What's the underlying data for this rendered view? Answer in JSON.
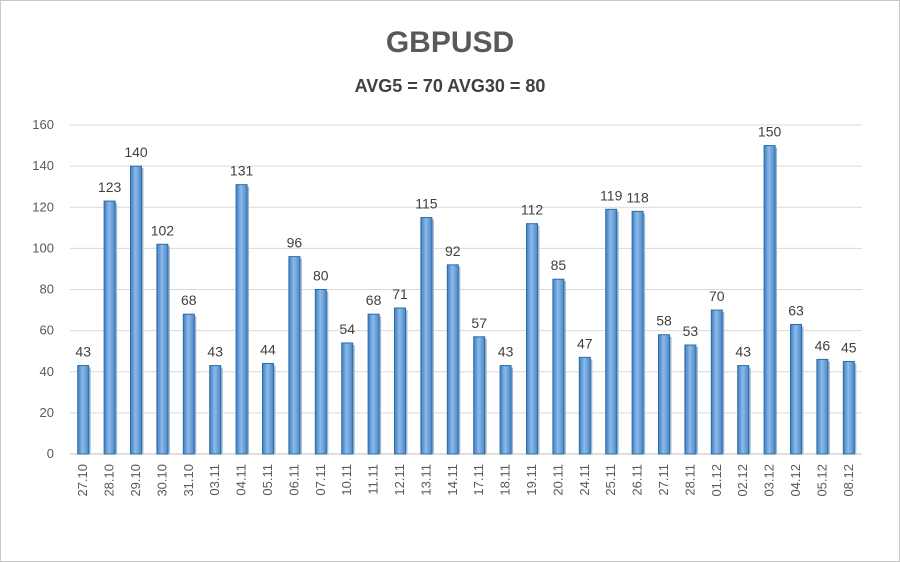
{
  "chart_data": {
    "type": "bar",
    "title": "GBPUSD",
    "subtitle": "AVG5 = 70 AVG30 = 80",
    "categories": [
      "27.10",
      "28.10",
      "29.10",
      "30.10",
      "31.10",
      "03.11",
      "04.11",
      "05.11",
      "06.11",
      "07.11",
      "10.11",
      "11.11",
      "12.11",
      "13.11",
      "14.11",
      "17.11",
      "18.11",
      "19.11",
      "20.11",
      "24.11",
      "25.11",
      "26.11",
      "27.11",
      "28.11",
      "01.12",
      "02.12",
      "03.12",
      "04.12",
      "05.12",
      "08.12"
    ],
    "values": [
      43,
      123,
      140,
      102,
      68,
      43,
      131,
      44,
      96,
      80,
      54,
      68,
      71,
      115,
      92,
      57,
      43,
      112,
      85,
      47,
      119,
      118,
      58,
      53,
      70,
      43,
      150,
      63,
      46,
      45
    ],
    "ylim": [
      0,
      160
    ],
    "yticks": [
      0,
      20,
      40,
      60,
      80,
      100,
      120,
      140,
      160
    ],
    "grid": true,
    "bar_color": "#5b9bd5",
    "bar_edge_color": "#2e6da4"
  }
}
